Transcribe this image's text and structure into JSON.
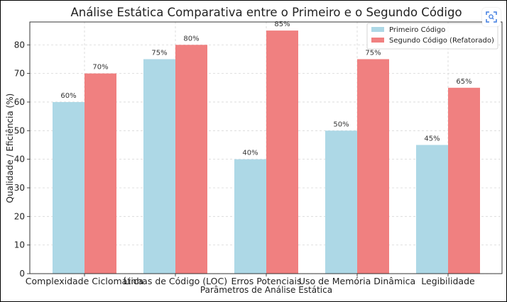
{
  "chart_data": {
    "type": "bar",
    "title": "Análise Estática Comparativa entre o Primeiro e o Segundo Código",
    "xlabel": "Parâmetros de Análise Estática",
    "ylabel": "Qualidade / Eficiência (%)",
    "ylim": [
      0,
      88
    ],
    "yticks": [
      0,
      10,
      20,
      30,
      40,
      50,
      60,
      70,
      80
    ],
    "grid": true,
    "legend_position": "top-right",
    "categories": [
      "Complexidade Ciclomática",
      "Linhas de Código (LOC)",
      "Erros Potenciais",
      "Uso de Memória Dinâmica",
      "Legibilidade"
    ],
    "series": [
      {
        "name": "Primeiro Código",
        "color": "#add8e6",
        "values": [
          60,
          75,
          40,
          50,
          45
        ],
        "labels": [
          "60%",
          "75%",
          "40%",
          "50%",
          "45%"
        ]
      },
      {
        "name": "Segundo Código (Refatorado)",
        "color": "#f08080",
        "values": [
          70,
          80,
          85,
          75,
          65
        ],
        "labels": [
          "70%",
          "80%",
          "85%",
          "75%",
          "65%"
        ]
      }
    ]
  },
  "toolbar": {
    "expand_icon": "expand-scan-icon"
  }
}
